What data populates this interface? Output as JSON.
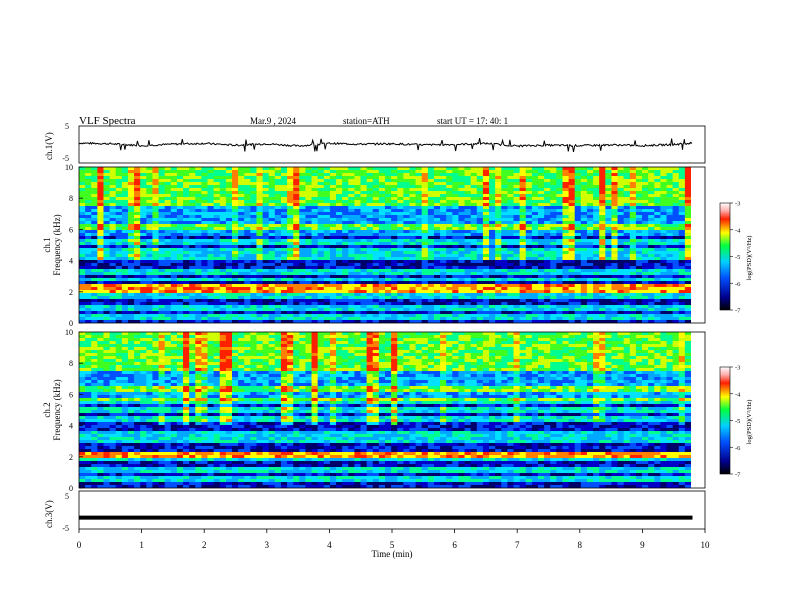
{
  "header": {
    "title": "VLF  Spectra",
    "date": "Mar.9  , 2024",
    "station": "station=ATH",
    "start": "start  UT  =    17: 40: 1"
  },
  "panels": {
    "ch1_label": "ch.1(V)",
    "ch3_label": "ch.3(V)",
    "spec1_label": "ch.1",
    "spec2_label": "ch.2",
    "freq_label": "Frequency  (kHz)",
    "colorbar_label": "log(PSD)(V²/Hz)"
  },
  "chart_data": [
    {
      "type": "line",
      "title": "ch.1(V)",
      "xlabel": "Time  (min)",
      "ylabel": "ch.1(V)",
      "xlim": [
        0,
        10
      ],
      "ylim": [
        -5,
        5
      ],
      "yticks": [
        "5",
        "-5"
      ],
      "x": [
        0,
        0.5,
        1,
        1.5,
        2,
        2.5,
        3,
        3.5,
        4,
        4.5,
        5,
        5.5,
        6,
        6.5,
        7,
        7.5,
        8,
        8.5,
        9,
        9.5,
        9.8
      ],
      "y": [
        0.4,
        0.2,
        -0.3,
        0.1,
        0.3,
        -0.2,
        0.2,
        -0.4,
        0.3,
        0.1,
        0.2,
        -0.1,
        0.0,
        0.3,
        -0.4,
        -0.2,
        -0.3,
        -0.1,
        -0.3,
        0.0,
        0.4
      ]
    },
    {
      "type": "heatmap",
      "title": "ch.1",
      "xlabel": "Time  (min)",
      "ylabel": "Frequency  (kHz)",
      "xlim": [
        0,
        10
      ],
      "ylim": [
        0,
        10
      ],
      "yticks": [
        "0",
        "2",
        "4",
        "6",
        "8",
        "10"
      ],
      "colorbar": {
        "label": "log(PSD)(V²/Hz)",
        "range": [
          -7,
          -3
        ],
        "ticks": [
          "-3",
          "-4",
          "-5",
          "-6",
          "-7"
        ]
      },
      "note_bands_kHz": [
        0.4,
        1.0,
        1.8,
        2.2,
        2.8,
        3.3,
        4.2,
        4.6,
        5.2,
        6.2
      ]
    },
    {
      "type": "heatmap",
      "title": "ch.2",
      "xlabel": "Time  (min)",
      "ylabel": "Frequency  (kHz)",
      "xlim": [
        0,
        10
      ],
      "ylim": [
        0,
        10
      ],
      "yticks": [
        "0",
        "2",
        "4",
        "6",
        "8",
        "10"
      ],
      "colorbar": {
        "label": "log(PSD)(V²/Hz)",
        "range": [
          -7,
          -3
        ],
        "ticks": [
          "-3",
          "-4",
          "-5",
          "-6",
          "-7"
        ]
      },
      "note_bands_kHz": [
        0.6,
        1.2,
        2.0,
        2.2,
        3.0,
        3.5,
        4.4,
        5.0,
        5.6,
        6.4
      ]
    },
    {
      "type": "line",
      "title": "ch.3(V)",
      "xlabel": "Time  (min)",
      "ylabel": "ch.3(V)",
      "xlim": [
        0,
        10
      ],
      "ylim": [
        -5,
        5
      ],
      "yticks": [
        "5",
        "-5"
      ],
      "xticks": [
        "0",
        "1",
        "2",
        "3",
        "4",
        "5",
        "6",
        "7",
        "8",
        "9",
        "10"
      ],
      "x": [
        0,
        9.8
      ],
      "y": [
        -2,
        -2
      ]
    }
  ]
}
